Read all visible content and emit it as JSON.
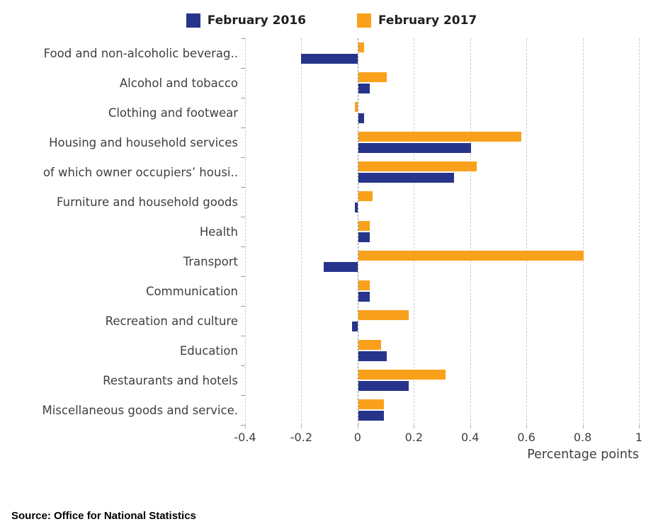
{
  "legend": [
    {
      "label": "February 2016",
      "color": "#27348b"
    },
    {
      "label": "February 2017",
      "color": "#f9a11b"
    }
  ],
  "chart_data": {
    "type": "bar",
    "orientation": "horizontal",
    "title": "",
    "xlabel": "Percentage points",
    "ylabel": "",
    "xlim": [
      -0.4,
      1
    ],
    "x_ticks": [
      -0.4,
      -0.2,
      0,
      0.2,
      0.4,
      0.6,
      0.8,
      1
    ],
    "grid": "dashed-vertical",
    "legend_position": "top-center",
    "categories": [
      "Food and non-alcoholic beverag..",
      "Alcohol and tobacco",
      "Clothing and footwear",
      "Housing and household services",
      "of which owner occupiers’ housi..",
      "Furniture and household goods",
      "Health",
      "Transport",
      "Communication",
      "Recreation and culture",
      "Education",
      "Restaurants and hotels",
      "Miscellaneous goods and service."
    ],
    "series": [
      {
        "name": "February 2016",
        "color": "#27348b",
        "values": [
          -0.2,
          0.04,
          0.02,
          0.4,
          0.34,
          -0.01,
          0.04,
          -0.12,
          0.04,
          -0.02,
          0.1,
          0.18,
          0.09
        ]
      },
      {
        "name": "February 2017",
        "color": "#f9a11b",
        "values": [
          0.02,
          0.1,
          -0.01,
          0.58,
          0.42,
          0.05,
          0.04,
          0.8,
          0.04,
          0.18,
          0.08,
          0.31,
          0.09
        ]
      }
    ]
  },
  "source": "Source: Office for National Statistics"
}
